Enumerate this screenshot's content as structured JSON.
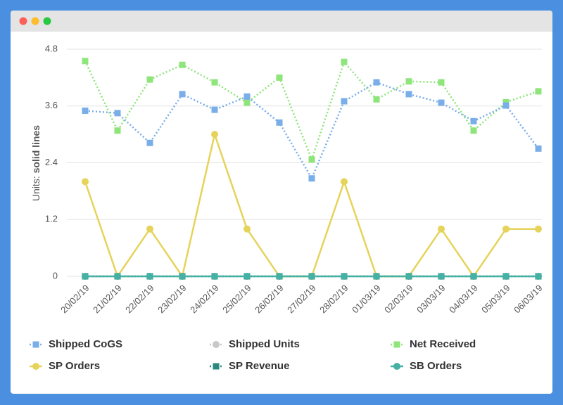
{
  "chart_data": {
    "type": "line",
    "y_label": {
      "prefix": "Units:",
      "emphasis": "solid lines"
    },
    "categories": [
      "20/02/19",
      "21/02/19",
      "22/02/19",
      "23/02/19",
      "24/02/19",
      "25/02/19",
      "26/02/19",
      "27/02/19",
      "28/02/19",
      "01/03/19",
      "02/03/19",
      "03/03/19",
      "04/03/19",
      "05/03/19",
      "06/03/19"
    ],
    "ylim": [
      0,
      4.8
    ],
    "yticks": [
      0,
      1.2,
      2.4,
      3.6,
      4.8
    ],
    "grid": true,
    "legend": "bottom",
    "series": [
      {
        "name": "Shipped CoGS",
        "color": "#7aaee8",
        "dash": true,
        "marker": "square",
        "values": [
          3.5,
          3.45,
          2.82,
          3.85,
          3.52,
          3.8,
          3.25,
          2.07,
          3.7,
          4.1,
          3.85,
          3.67,
          3.28,
          3.61,
          2.7
        ]
      },
      {
        "name": "Shipped Units",
        "color": "#c8c8c8",
        "dash": true,
        "marker": "circle",
        "hidden": true
      },
      {
        "name": "Net Received",
        "color": "#8ee57a",
        "dash": true,
        "marker": "square",
        "values": [
          4.55,
          3.08,
          4.16,
          4.47,
          4.1,
          3.67,
          4.2,
          2.47,
          4.53,
          3.74,
          4.12,
          4.1,
          3.08,
          3.68,
          3.91
        ]
      },
      {
        "name": "SP Orders",
        "color": "#e6d35a",
        "dash": false,
        "marker": "circle",
        "values": [
          2,
          0,
          1,
          0,
          3,
          1,
          0,
          0,
          2,
          0,
          0,
          1,
          0,
          1,
          1
        ]
      },
      {
        "name": "SP Revenue",
        "color": "#2a8a7e",
        "dash": true,
        "marker": "square",
        "values": [
          0,
          0,
          0,
          0,
          0,
          0,
          0,
          0,
          0,
          0,
          0,
          0,
          0,
          0,
          0
        ]
      },
      {
        "name": "SB Orders",
        "color": "#45b0a4",
        "dash": false,
        "marker": "circle",
        "values": [
          0,
          0,
          0,
          0,
          0,
          0,
          0,
          0,
          0,
          0,
          0,
          0,
          0,
          0,
          0
        ]
      }
    ]
  }
}
